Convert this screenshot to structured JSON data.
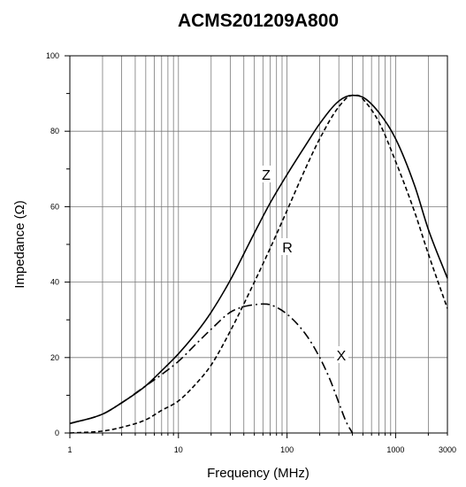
{
  "chart_data": {
    "type": "line",
    "title": "ACMS201209A800",
    "xlabel": "Frequency (MHz)",
    "ylabel": "Impedance (Ω)",
    "x_scale": "log",
    "xlim": [
      1,
      3000
    ],
    "ylim": [
      0,
      100
    ],
    "x_ticks": [
      1,
      10,
      100,
      1000,
      3000
    ],
    "x_tick_labels": [
      "1",
      "10",
      "100",
      "1000",
      "3000"
    ],
    "y_ticks": [
      0,
      20,
      40,
      60,
      80,
      100
    ],
    "y_tick_labels": [
      "0",
      "20",
      "40",
      "60",
      "80",
      "100"
    ],
    "grid": true,
    "series": [
      {
        "name": "Z",
        "style": "solid",
        "color": "#000000",
        "x": [
          1,
          2,
          3,
          5,
          7,
          10,
          15,
          20,
          30,
          50,
          70,
          100,
          150,
          200,
          300,
          400,
          500,
          700,
          1000,
          1500,
          2000,
          3000
        ],
        "y": [
          2.5,
          5,
          8,
          12.5,
          16.5,
          21,
          27,
          32,
          40.5,
          53,
          61,
          68.5,
          76.5,
          82,
          88,
          89.5,
          89,
          85,
          78,
          65.5,
          54,
          41
        ]
      },
      {
        "name": "R",
        "style": "dashed",
        "color": "#000000",
        "x": [
          1,
          2,
          3,
          5,
          7,
          10,
          15,
          20,
          30,
          50,
          70,
          100,
          150,
          200,
          300,
          400,
          450,
          500,
          700,
          1000,
          1500,
          2000,
          3000
        ],
        "y": [
          0,
          0.5,
          1.5,
          3.5,
          6,
          8.5,
          13.5,
          18,
          27,
          40,
          49,
          59,
          70.5,
          78,
          86.5,
          89.5,
          89.5,
          88.5,
          82.5,
          72,
          58.5,
          47.5,
          33
        ]
      },
      {
        "name": "X",
        "style": "dash-dot",
        "color": "#000000",
        "x": [
          1,
          2,
          3,
          5,
          7,
          10,
          15,
          20,
          30,
          40,
          50,
          60,
          70,
          100,
          150,
          200,
          250,
          300,
          350,
          400
        ],
        "y": [
          2.5,
          5,
          8,
          12.5,
          15.5,
          19,
          24,
          27.5,
          32,
          33.5,
          34,
          34.2,
          34,
          31.5,
          26,
          20,
          14,
          8,
          3,
          0
        ]
      }
    ]
  }
}
